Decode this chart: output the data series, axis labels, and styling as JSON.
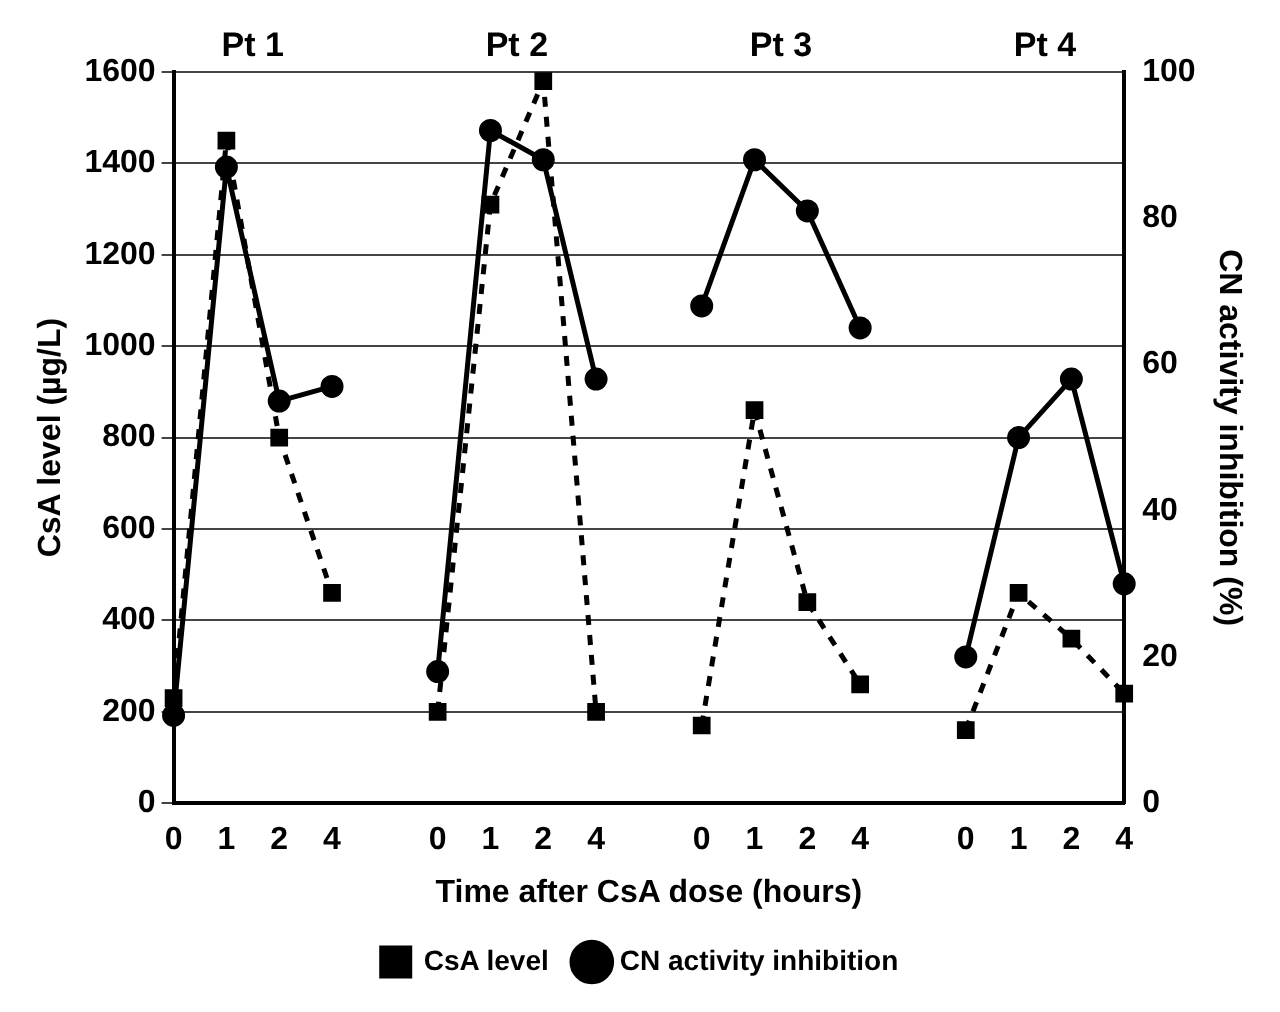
{
  "chart_data": {
    "type": "line",
    "xlabel": "Time after CsA dose (hours)",
    "ylabel": "CsA level (µg/L)",
    "y2label": "CN activity inhibition (%)",
    "annotations": [
      "Pt 1",
      "Pt 2",
      "Pt 3",
      "Pt 4"
    ],
    "categories": [
      "0",
      "1",
      "2",
      "4",
      null,
      "0",
      "1",
      "2",
      "4",
      null,
      "0",
      "1",
      "2",
      "4",
      null,
      "0",
      "1",
      "2",
      "4"
    ],
    "series": [
      {
        "name": "CsA level",
        "color": "#000000",
        "marker": "square",
        "line_style": "dashed",
        "values": [
          230,
          1450,
          800,
          460,
          null,
          200,
          1310,
          1580,
          200,
          null,
          170,
          860,
          440,
          260,
          null,
          160,
          460,
          360,
          240
        ]
      },
      {
        "name": "CN activity inhibition",
        "color": "#000000",
        "marker": "circle",
        "line_style": "solid",
        "axis": "y2",
        "values": [
          12,
          87,
          55,
          57,
          null,
          18,
          92,
          88,
          58,
          null,
          68,
          88,
          81,
          65,
          null,
          20,
          50,
          58,
          30
        ]
      }
    ],
    "ylim": [
      0,
      1600
    ],
    "yticks": [
      0,
      200,
      400,
      600,
      800,
      1000,
      1200,
      1400,
      1600
    ],
    "y2lim": [
      0,
      100
    ],
    "y2ticks": [
      0,
      20,
      40,
      60,
      80,
      100
    ],
    "grid": "y",
    "legend": "bottom"
  }
}
